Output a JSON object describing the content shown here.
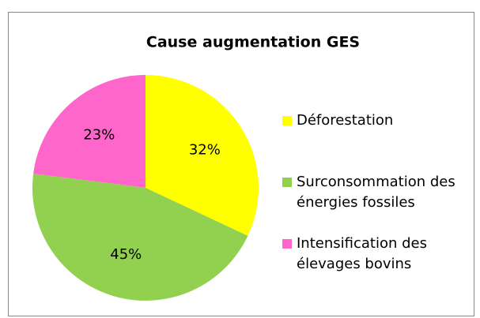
{
  "chart_data": {
    "type": "pie",
    "title": "Cause augmentation GES",
    "categories": [
      "Déforestation",
      "Surconsommation des énergies fossiles",
      "Intensification des élevages bovins"
    ],
    "values": [
      32,
      45,
      23
    ],
    "value_labels": [
      "32%",
      "45%",
      "23%"
    ],
    "colors": [
      "#ffff00",
      "#92d050",
      "#ff66cc"
    ],
    "legend": "right"
  }
}
